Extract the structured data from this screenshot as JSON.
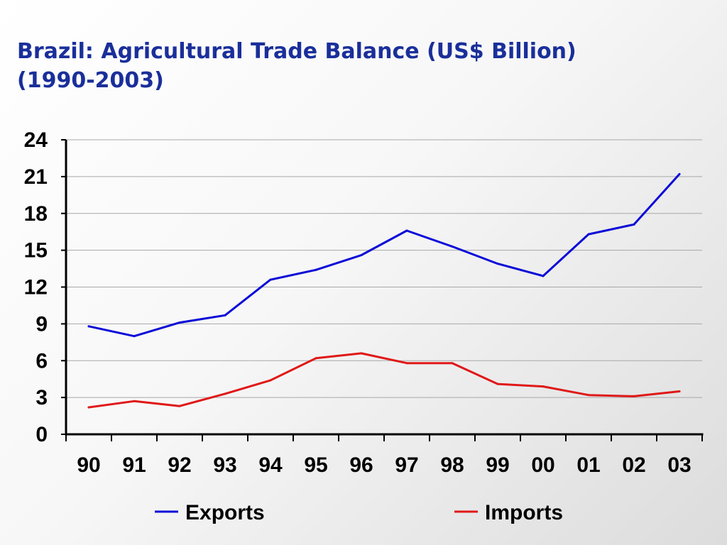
{
  "title": {
    "line1": "Brazil: Agricultural Trade Balance (US$ Billion)",
    "line2": "(1990-2003)"
  },
  "chart_data": {
    "type": "line",
    "title": "Brazil: Agricultural Trade Balance (US$ Billion) (1990-2003)",
    "xlabel": "",
    "ylabel": "",
    "categories": [
      "90",
      "91",
      "92",
      "93",
      "94",
      "95",
      "96",
      "97",
      "98",
      "99",
      "00",
      "01",
      "02",
      "03"
    ],
    "yticks": [
      0,
      3,
      6,
      9,
      12,
      15,
      18,
      21,
      24
    ],
    "ylim": [
      0,
      24
    ],
    "grid": true,
    "legend_position": "bottom",
    "series": [
      {
        "name": "Exports",
        "color": "#0a0ad8",
        "values": [
          8.8,
          8.0,
          9.1,
          9.7,
          12.6,
          13.4,
          14.6,
          16.6,
          15.3,
          13.9,
          12.9,
          16.3,
          17.1,
          21.2
        ]
      },
      {
        "name": "Imports",
        "color": "#e01818",
        "values": [
          2.2,
          2.7,
          2.3,
          3.3,
          4.4,
          6.2,
          6.6,
          5.8,
          5.8,
          4.1,
          3.9,
          3.2,
          3.1,
          3.5
        ]
      }
    ]
  }
}
